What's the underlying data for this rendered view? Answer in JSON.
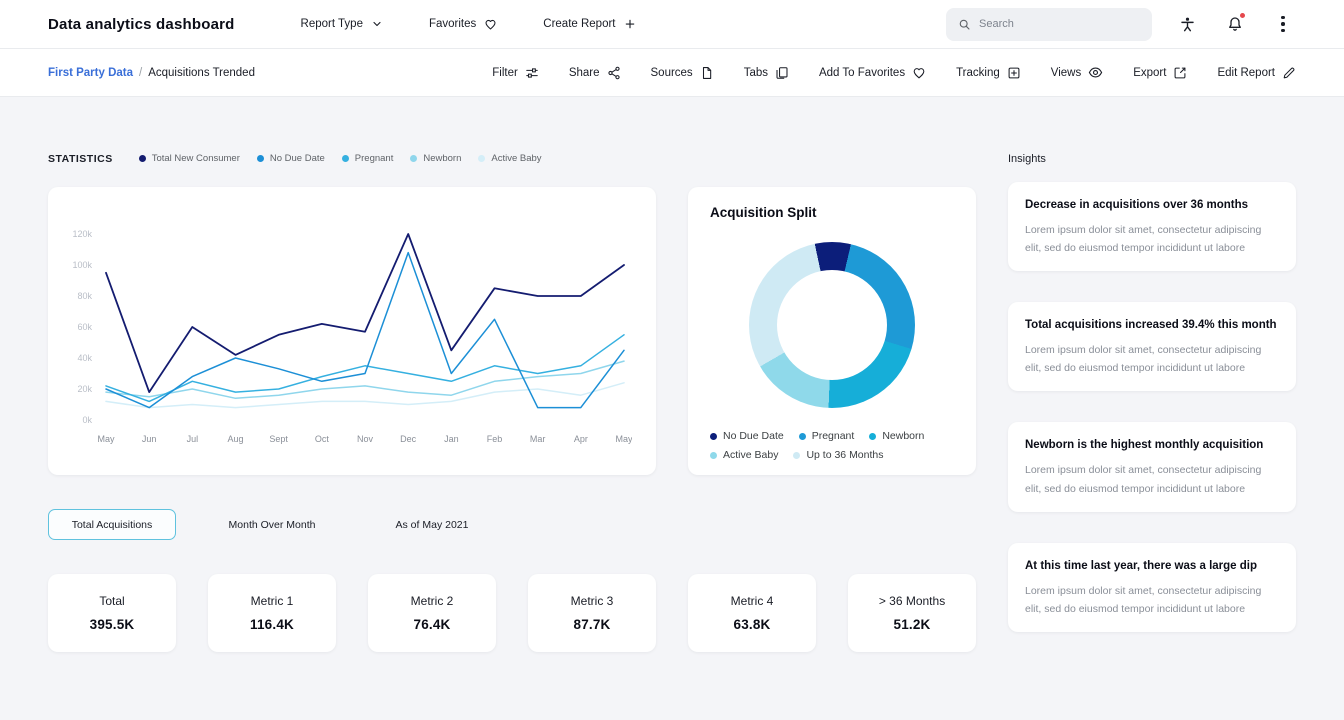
{
  "navbar": {
    "title": "Data analytics dashboard",
    "items": [
      {
        "label": "Report Type"
      },
      {
        "label": "Favorites"
      },
      {
        "label": "Create Report"
      }
    ],
    "search": {
      "placeholder": "Search"
    }
  },
  "toolbar": {
    "breadcrumb": {
      "link": "First Party Data",
      "separator": "/",
      "current": "Acquisitions Trended"
    },
    "actions": [
      {
        "label": "Filter",
        "icon": "filter-icon"
      },
      {
        "label": "Share",
        "icon": "share-icon"
      },
      {
        "label": "Sources",
        "icon": "document-icon"
      },
      {
        "label": "Tabs",
        "icon": "tabs-icon"
      },
      {
        "label": "Add To Favorites",
        "icon": "heart-icon"
      },
      {
        "label": "Tracking",
        "icon": "tracking-icon"
      },
      {
        "label": "Views",
        "icon": "eye-icon"
      },
      {
        "label": "Export",
        "icon": "export-icon"
      },
      {
        "label": "Edit Report",
        "icon": "pencil-icon"
      }
    ]
  },
  "statistics": {
    "label": "STATISTICS"
  },
  "chart_data": [
    {
      "type": "line",
      "title": "STATISTICS",
      "values_unit": "thousands",
      "x": [
        "May",
        "Jun",
        "Jul",
        "Aug",
        "Sept",
        "Oct",
        "Nov",
        "Dec",
        "Jan",
        "Feb",
        "Mar",
        "Apr",
        "May"
      ],
      "series": [
        {
          "name": "Total New Consumer",
          "color": "#141c70",
          "values": [
            95,
            18,
            60,
            42,
            55,
            62,
            57,
            120,
            45,
            85,
            80,
            80,
            100
          ]
        },
        {
          "name": "No Due Date",
          "color": "#1c8fd6",
          "values": [
            20,
            8,
            28,
            40,
            33,
            25,
            30,
            108,
            30,
            65,
            8,
            8,
            45
          ]
        },
        {
          "name": "Pregnant",
          "color": "#35b0e0",
          "values": [
            22,
            12,
            25,
            18,
            20,
            28,
            35,
            30,
            25,
            35,
            30,
            35,
            55
          ]
        },
        {
          "name": "Newborn",
          "color": "#8fd6ec",
          "values": [
            18,
            15,
            20,
            14,
            16,
            20,
            22,
            18,
            16,
            25,
            28,
            30,
            38
          ]
        },
        {
          "name": "Active Baby",
          "color": "#d4eef8",
          "values": [
            12,
            8,
            10,
            8,
            10,
            12,
            12,
            10,
            12,
            18,
            20,
            16,
            24
          ]
        }
      ],
      "ylim": [
        0,
        120
      ],
      "yticks": [
        "0k",
        "20k",
        "40k",
        "60k",
        "80k",
        "100k",
        "120k"
      ],
      "grid": false,
      "legend_position": "top"
    },
    {
      "type": "pie",
      "subtype": "donut",
      "title": "Acquisition Split",
      "labels": [
        "No Due Date",
        "Pregnant",
        "Newborn",
        "Active Baby",
        "Up to 36 Months"
      ],
      "values": [
        7,
        26,
        21,
        16,
        30
      ],
      "colors": [
        "#0c1e7a",
        "#1e9ad6",
        "#16aed8",
        "#8fd9ea",
        "#cfeaf4"
      ],
      "legend_position": "bottom"
    }
  ],
  "controls": {
    "total_acquisitions": "Total Acquisitions",
    "month_over_month": "Month Over Month",
    "as_of": "As of May 2021"
  },
  "metrics": [
    {
      "label": "Total",
      "value": "395.5K"
    },
    {
      "label": "Metric 1",
      "value": "116.4K"
    },
    {
      "label": "Metric 2",
      "value": "76.4K"
    },
    {
      "label": "Metric 3",
      "value": "87.7K"
    },
    {
      "label": "Metric 4",
      "value": "63.8K"
    },
    {
      "label": "> 36 Months",
      "value": "51.2K"
    }
  ],
  "insights": {
    "title": "Insights",
    "cards": [
      {
        "title": "Decrease in acquisitions over 36 months",
        "body": "Lorem ipsum dolor sit amet, consectetur adipiscing elit, sed do eiusmod tempor incididunt ut labore"
      },
      {
        "title": "Total acquisitions increased 39.4% this month",
        "body": "Lorem ipsum dolor sit amet, consectetur adipiscing elit, sed do eiusmod tempor incididunt ut labore"
      },
      {
        "title": "Newborn is the highest monthly acquisition",
        "body": "Lorem ipsum dolor sit amet, consectetur adipiscing elit, sed do eiusmod tempor incididunt ut labore"
      },
      {
        "title": "At this time last year, there was a large dip",
        "body": "Lorem ipsum dolor sit amet, consectetur adipiscing elit, sed do eiusmod tempor incididunt ut labore"
      }
    ]
  }
}
